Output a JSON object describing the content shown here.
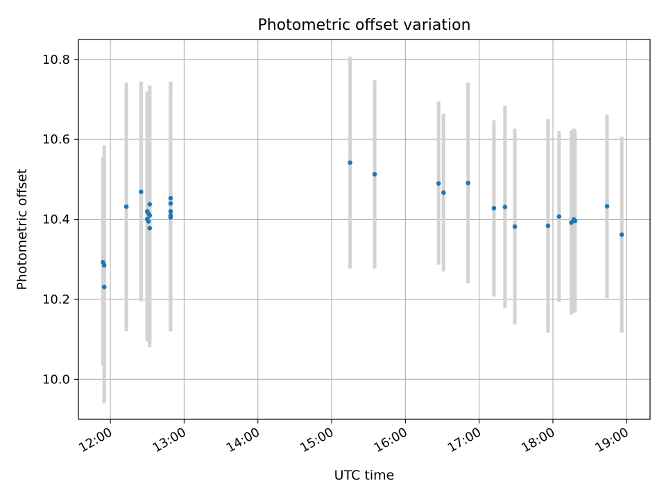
{
  "chart_data": {
    "type": "scatter",
    "title": "Photometric offset variation",
    "xlabel": "UTC time",
    "ylabel": "Photometric offset",
    "x_unit": "UTC time (HH:MM)",
    "xlim": [
      "11:34",
      "19:19"
    ],
    "ylim": [
      9.9,
      10.85
    ],
    "grid": true,
    "x_ticks": [
      "12:00",
      "13:00",
      "14:00",
      "15:00",
      "16:00",
      "17:00",
      "18:00",
      "19:00"
    ],
    "y_ticks": [
      "10.0",
      "10.2",
      "10.4",
      "10.6",
      "10.8"
    ],
    "colors": {
      "point": "#1f77b4",
      "errorbar": "#d3d3d3",
      "grid": "#b0b0b0"
    },
    "points": [
      {
        "x": "11:54",
        "y": 10.293,
        "err_low": 10.035,
        "err_high": 10.555
      },
      {
        "x": "11:55",
        "y": 10.285,
        "err_low": 9.94,
        "err_high": 10.585
      },
      {
        "x": "11:55",
        "y": 10.231,
        "err_low": 9.94,
        "err_high": 10.56
      },
      {
        "x": "12:13",
        "y": 10.432,
        "err_low": 10.12,
        "err_high": 10.742
      },
      {
        "x": "12:25",
        "y": 10.469,
        "err_low": 10.195,
        "err_high": 10.745
      },
      {
        "x": "12:30",
        "y": 10.42,
        "err_low": 10.095,
        "err_high": 10.72
      },
      {
        "x": "12:30",
        "y": 10.401,
        "err_low": 10.1,
        "err_high": 10.72
      },
      {
        "x": "12:31",
        "y": 10.415,
        "err_low": 10.11,
        "err_high": 10.72
      },
      {
        "x": "12:31",
        "y": 10.395,
        "err_low": 10.1,
        "err_high": 10.705
      },
      {
        "x": "12:32",
        "y": 10.438,
        "err_low": 10.08,
        "err_high": 10.735
      },
      {
        "x": "12:32",
        "y": 10.378,
        "err_low": 10.09,
        "err_high": 10.73
      },
      {
        "x": "12:32",
        "y": 10.41,
        "err_low": 10.11,
        "err_high": 10.72
      },
      {
        "x": "12:49",
        "y": 10.453,
        "err_low": 10.12,
        "err_high": 10.745
      },
      {
        "x": "12:49",
        "y": 10.44,
        "err_low": 10.13,
        "err_high": 10.745
      },
      {
        "x": "12:49",
        "y": 10.42,
        "err_low": 10.13,
        "err_high": 10.72
      },
      {
        "x": "12:49",
        "y": 10.41,
        "err_low": 10.12,
        "err_high": 10.71
      },
      {
        "x": "12:49",
        "y": 10.405,
        "err_low": 10.14,
        "err_high": 10.7
      },
      {
        "x": "15:15",
        "y": 10.542,
        "err_low": 10.277,
        "err_high": 10.807
      },
      {
        "x": "15:35",
        "y": 10.513,
        "err_low": 10.277,
        "err_high": 10.748
      },
      {
        "x": "16:27",
        "y": 10.49,
        "err_low": 10.287,
        "err_high": 10.695
      },
      {
        "x": "16:31",
        "y": 10.467,
        "err_low": 10.27,
        "err_high": 10.665
      },
      {
        "x": "16:51",
        "y": 10.491,
        "err_low": 10.24,
        "err_high": 10.742
      },
      {
        "x": "17:12",
        "y": 10.428,
        "err_low": 10.207,
        "err_high": 10.648
      },
      {
        "x": "17:21",
        "y": 10.431,
        "err_low": 10.178,
        "err_high": 10.684
      },
      {
        "x": "17:29",
        "y": 10.382,
        "err_low": 10.137,
        "err_high": 10.627
      },
      {
        "x": "17:56",
        "y": 10.384,
        "err_low": 10.117,
        "err_high": 10.651
      },
      {
        "x": "18:05",
        "y": 10.407,
        "err_low": 10.193,
        "err_high": 10.621
      },
      {
        "x": "18:15",
        "y": 10.392,
        "err_low": 10.162,
        "err_high": 10.622
      },
      {
        "x": "18:17",
        "y": 10.4,
        "err_low": 10.168,
        "err_high": 10.627
      },
      {
        "x": "18:18",
        "y": 10.396,
        "err_low": 10.167,
        "err_high": 10.624
      },
      {
        "x": "18:44",
        "y": 10.433,
        "err_low": 10.203,
        "err_high": 10.662
      },
      {
        "x": "18:56",
        "y": 10.362,
        "err_low": 10.117,
        "err_high": 10.607
      }
    ]
  }
}
